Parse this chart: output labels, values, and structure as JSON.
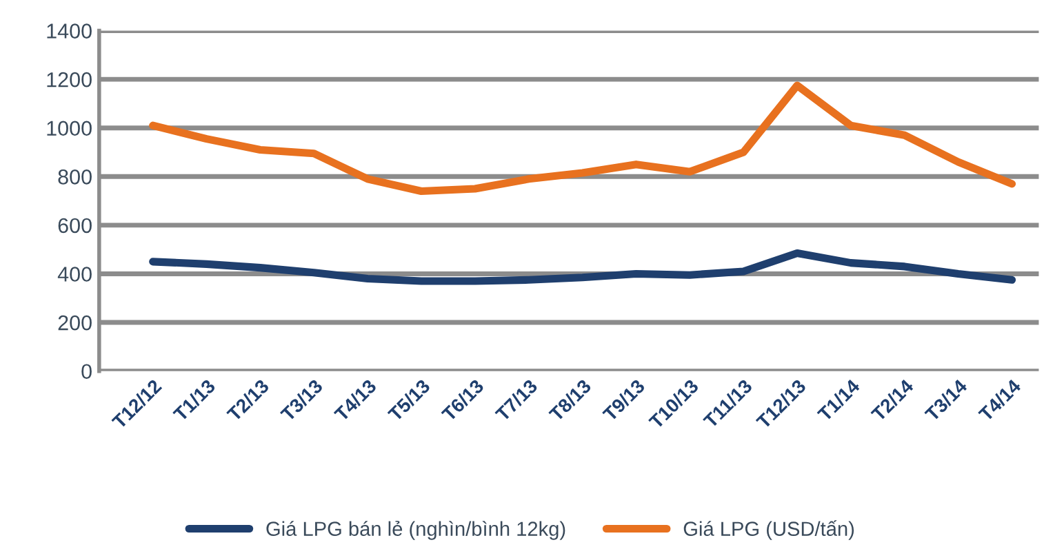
{
  "chart_data": {
    "type": "line",
    "categories": [
      "T12/12",
      "T1/13",
      "T2/13",
      "T3/13",
      "T4/13",
      "T5/13",
      "T6/13",
      "T7/13",
      "T8/13",
      "T9/13",
      "T10/13",
      "T11/13",
      "T12/13",
      "T1/14",
      "T2/14",
      "T3/14",
      "T4/14"
    ],
    "series": [
      {
        "name": "Giá LPG bán lẻ (nghìn/bình 12kg)",
        "color": "#1f3f6e",
        "values": [
          450,
          440,
          425,
          405,
          380,
          370,
          370,
          375,
          385,
          400,
          395,
          410,
          485,
          445,
          430,
          400,
          375
        ]
      },
      {
        "name": "Giá LPG (USD/tấn)",
        "color": "#e8711f",
        "values": [
          1010,
          955,
          910,
          895,
          790,
          740,
          750,
          790,
          815,
          850,
          820,
          900,
          1175,
          1010,
          970,
          860,
          770
        ]
      }
    ],
    "ylim": [
      0,
      1400
    ],
    "yticks": [
      0,
      200,
      400,
      600,
      800,
      1000,
      1200,
      1400
    ],
    "grid": "y",
    "legend": "bottom",
    "marker": "none",
    "line_style": "solid"
  }
}
